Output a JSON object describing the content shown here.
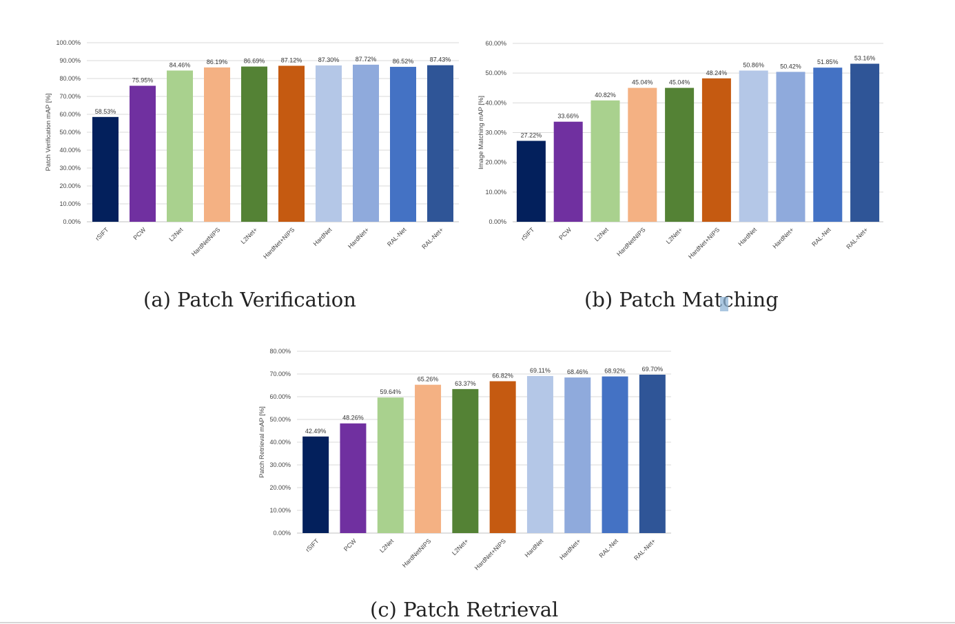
{
  "colors": [
    "#03205c",
    "#7030a0",
    "#a9d18e",
    "#f4b183",
    "#548235",
    "#c55a11",
    "#b4c7e7",
    "#8faadc",
    "#4472c4",
    "#2f5597"
  ],
  "captions": {
    "a": "(a) Patch Verification",
    "b": "(b) Patch Matching",
    "c": "(c) Patch Retrieval"
  },
  "chart_data": [
    {
      "type": "bar",
      "id": "a",
      "ylabel": "Patch Verification mAP [%]",
      "ylim": [
        0,
        100
      ],
      "categories": [
        "rSIFT",
        "PCW",
        "L2Net",
        "HardNetNIPS",
        "L2Net+",
        "HardNet+NIPS",
        "HardNet",
        "HardNet+",
        "RAL-Net",
        "RAL-Net+"
      ],
      "values": [
        58.53,
        75.95,
        84.46,
        86.19,
        86.69,
        87.12,
        87.3,
        87.72,
        86.52,
        87.43
      ],
      "value_labels": [
        "58.53%",
        "75.95%",
        "84.46%",
        "86.19%",
        "86.69%",
        "87.12%",
        "87.30%",
        "87.72%",
        "86.52%",
        "87.43%"
      ],
      "yticks": [
        "0.00%",
        "10.00%",
        "20.00%",
        "30.00%",
        "40.00%",
        "50.00%",
        "60.00%",
        "70.00%",
        "80.00%",
        "90.00%",
        "100.00%"
      ],
      "grid": true
    },
    {
      "type": "bar",
      "id": "b",
      "ylabel": "Image Matching mAP [%]",
      "ylim": [
        0,
        60
      ],
      "categories": [
        "rSIFT",
        "PCW",
        "L2Net",
        "HardNetNIPS",
        "L2Net+",
        "HardNet+NIPS",
        "HardNet",
        "HardNet+",
        "RAL-Net",
        "RAL-Net+"
      ],
      "values": [
        27.22,
        33.66,
        40.82,
        45.04,
        45.04,
        48.24,
        50.86,
        50.42,
        51.85,
        53.16
      ],
      "value_labels": [
        "27.22%",
        "33.66%",
        "40.82%",
        "45.04%",
        "45.04%",
        "48.24%",
        "50.86%",
        "50.42%",
        "51.85%",
        "53.16%"
      ],
      "yticks": [
        "0.00%",
        "10.00%",
        "20.00%",
        "30.00%",
        "40.00%",
        "50.00%",
        "60.00%"
      ],
      "grid": true
    },
    {
      "type": "bar",
      "id": "c",
      "ylabel": "Patch Retrieval mAP [%]",
      "ylim": [
        0,
        80
      ],
      "categories": [
        "rSIFT",
        "PCW",
        "L2Net",
        "HardNetNIPS",
        "L2Net+",
        "HardNet+NIPS",
        "HardNet",
        "HardNet+",
        "RAL-Net",
        "RAL-Net+"
      ],
      "values": [
        42.49,
        48.26,
        59.64,
        65.26,
        63.37,
        66.82,
        69.11,
        68.46,
        68.92,
        69.7
      ],
      "value_labels": [
        "42.49%",
        "48.26%",
        "59.64%",
        "65.26%",
        "63.37%",
        "66.82%",
        "69.11%",
        "68.46%",
        "68.92%",
        "69.70%"
      ],
      "yticks": [
        "0.00%",
        "10.00%",
        "20.00%",
        "30.00%",
        "40.00%",
        "50.00%",
        "60.00%",
        "70.00%",
        "80.00%"
      ],
      "grid": true
    }
  ]
}
